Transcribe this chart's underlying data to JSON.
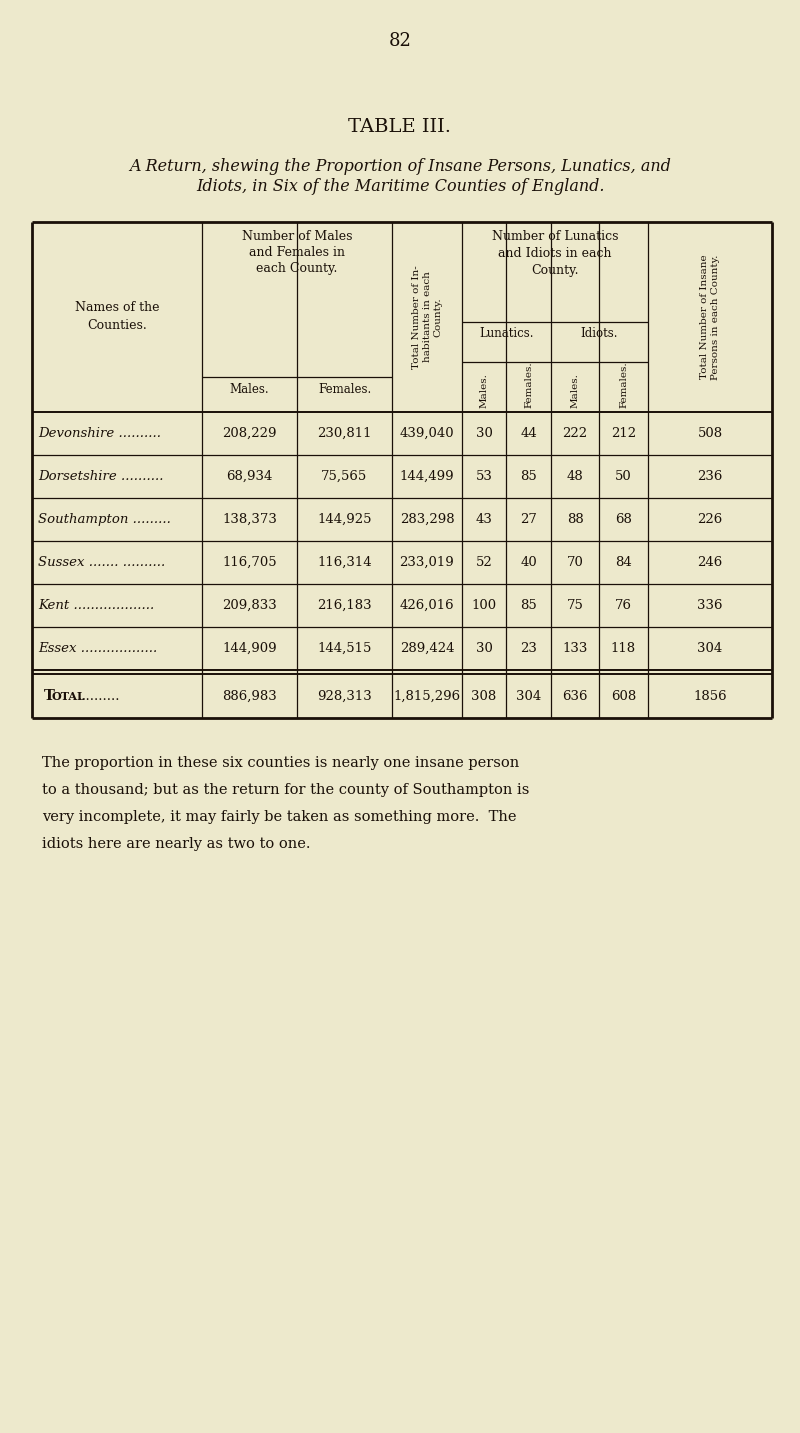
{
  "page_number": "82",
  "title": "TABLE III.",
  "subtitle_line1": "A Return, shewing the Proportion of Insane Persons, Lunatics, and",
  "subtitle_line2": "Idiots, in Six of the Maritime Counties of England.",
  "bg_color": "#ede9cc",
  "text_color": "#1a1008",
  "counties": [
    "Devonshire ..........",
    "Dorsetshire ..........",
    "Southampton .........",
    "Sussex ....... ..........",
    "Kent ...................",
    "Essex .................."
  ],
  "males": [
    208229,
    68934,
    138373,
    116705,
    209833,
    144909
  ],
  "females": [
    230811,
    75565,
    144925,
    116314,
    216183,
    144515
  ],
  "totals": [
    439040,
    144499,
    283298,
    233019,
    426016,
    289424
  ],
  "lunatics_m": [
    30,
    53,
    43,
    52,
    100,
    30
  ],
  "lunatics_f": [
    44,
    85,
    27,
    40,
    85,
    23
  ],
  "idiots_m": [
    222,
    48,
    88,
    70,
    75,
    133
  ],
  "idiots_f": [
    212,
    50,
    68,
    84,
    76,
    118
  ],
  "total_insane": [
    508,
    236,
    226,
    246,
    336,
    304
  ],
  "total_males": 886983,
  "total_females": 928313,
  "total_pop": 1815296,
  "total_lun_m": 308,
  "total_lun_f": 304,
  "total_id_m": 636,
  "total_id_f": 608,
  "total_insane_sum": 1856,
  "footer_lines": [
    "The proportion in these six counties is nearly one insane person",
    "to a thousand; but as the return for the county of Southampton is",
    "very incomplete, it may fairly be taken as something more.  The",
    "idiots here are nearly as two to one."
  ]
}
